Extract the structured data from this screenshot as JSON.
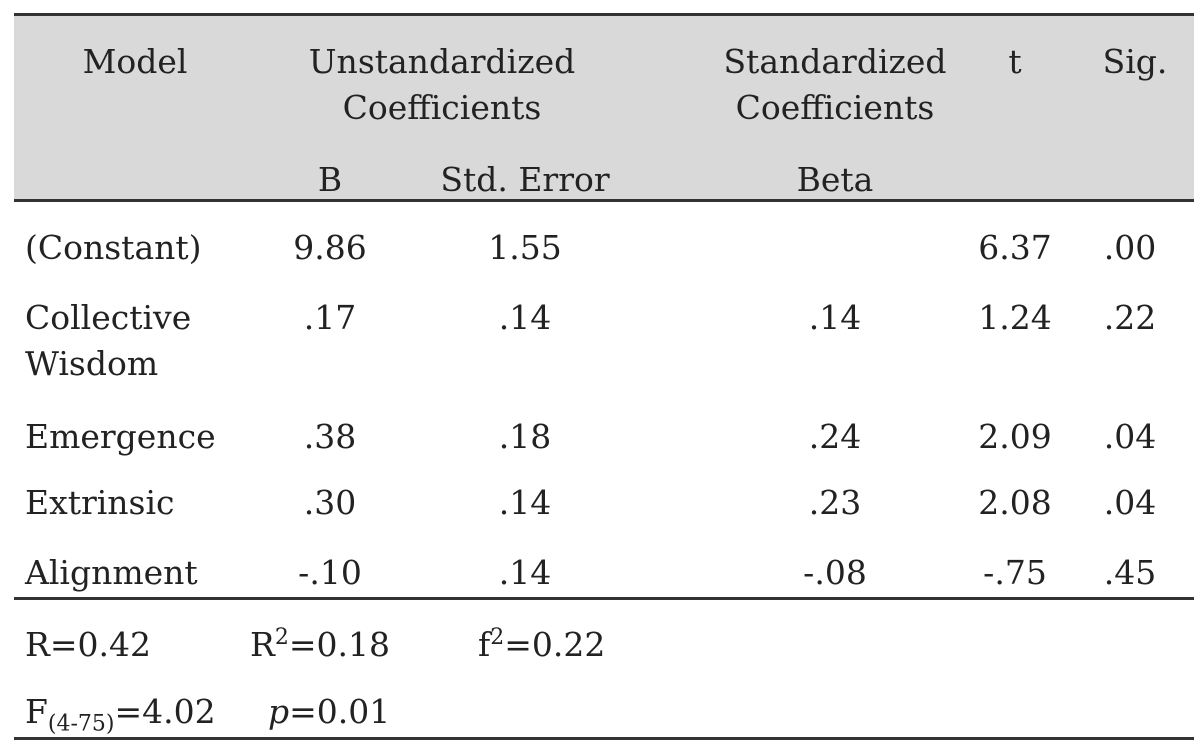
{
  "header": {
    "row1": {
      "model": "Model",
      "unstandardized": "Unstandardized Coefficients",
      "standardized": "Standardized Coefficients",
      "t": "t",
      "sig": "Sig."
    },
    "row2": {
      "b": "B",
      "std_error": "Std. Error",
      "beta": "Beta"
    }
  },
  "rows": [
    [
      "(Constant)",
      "9.86",
      "1.55",
      null,
      "6.37",
      ".00"
    ],
    [
      "Collective Wisdom",
      ".17",
      ".14",
      ".14",
      "1.24",
      ".22"
    ],
    [
      "Emergence",
      ".38",
      ".18",
      ".24",
      "2.09",
      ".04"
    ],
    [
      "Extrinsic",
      ".30",
      ".14",
      ".23",
      "2.08",
      ".04"
    ],
    [
      "Alignment",
      "-.10",
      ".14",
      "-.08",
      "-.75",
      ".45"
    ]
  ],
  "stats": [
    {
      "symbol": "R",
      "text": "=0.42"
    },
    {
      "symbol": "R",
      "sup": "2",
      "text": "=0.18"
    },
    {
      "symbol": "f",
      "sup": "2",
      "text": "=0.22"
    },
    {
      "symbol": "F",
      "sub": "(4-75)",
      "text": "=4.02"
    },
    {
      "symbol": "p",
      "italic": true,
      "text": "=0.01"
    }
  ]
}
